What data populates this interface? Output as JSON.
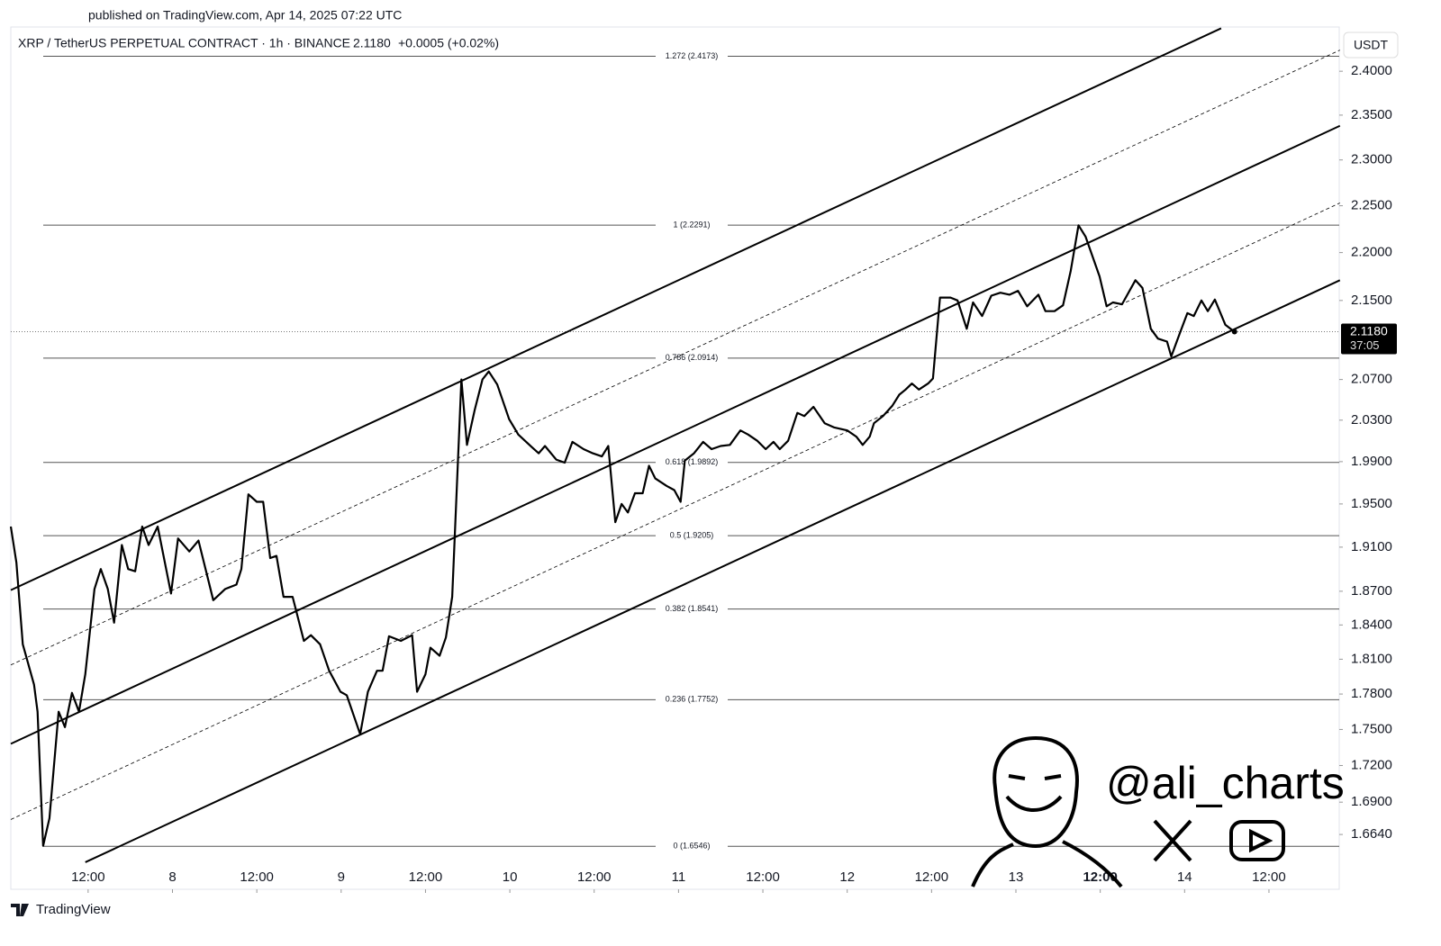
{
  "header": {
    "published": "published on TradingView.com, Apr 14, 2025 07:22 UTC",
    "symbol": "XRP / TetherUS PERPETUAL CONTRACT · 1h · BINANCE",
    "last": "2.1180",
    "change": "+0.0005 (+0.02%)",
    "currency": "USDT"
  },
  "chart_data": {
    "type": "line",
    "color": "#000000",
    "log_y": true,
    "x": [
      1.0,
      1.8,
      2.7,
      4.3,
      4.8,
      5.6,
      6.5,
      7.8,
      8.7,
      9.7,
      10.7,
      11.6,
      12.9,
      13.8,
      14.8,
      15.7,
      16.8,
      17.7,
      18.7,
      19.7,
      20.6,
      21.9,
      23.8,
      24.8,
      26.4,
      27.7,
      29.8,
      31.5,
      33.1,
      33.8,
      34.8,
      36.0,
      36.9,
      37.9,
      38.8,
      39.8,
      41.1,
      42.7,
      43.7,
      45.0,
      46.3,
      47.9,
      48.8,
      50.7,
      51.8,
      53.1,
      53.9,
      54.8,
      56.5,
      58.1,
      58.8,
      60.0,
      60.7,
      62.0,
      62.9,
      63.8,
      65.1,
      65.9,
      67.0,
      68.1,
      69.0,
      70.2,
      71.9,
      73.2,
      75.1,
      76.1,
      77.0,
      78.6,
      79.8,
      80.9,
      82.5,
      83.8,
      85.1,
      86.0,
      87.0,
      87.9,
      88.8,
      89.8,
      90.9,
      91.8,
      92.7,
      94.3,
      95.4,
      96.3,
      96.9,
      98.2,
      99.5,
      100.7,
      102.0,
      103.3,
      104.8,
      105.9,
      107.2,
      108.4,
      109.5,
      110.4,
      111.6,
      112.9,
      113.9,
      115.2,
      116.8,
      118.1,
      120.0,
      121.3,
      122.2,
      123.2,
      123.8,
      125.1,
      126.4,
      127.4,
      128.3,
      129.2,
      130.2,
      131.5,
      132.2,
      133.2,
      134.7,
      135.7,
      137.0,
      137.9,
      139.2,
      140.5,
      141.8,
      143.1,
      144.3,
      145.6,
      147.2,
      148.2,
      149.5,
      150.7,
      151.8,
      152.9,
      153.9,
      155.9,
      156.9,
      157.8,
      159.1,
      161.0,
      162.0,
      163.2,
      164.2,
      165.5,
      166.1,
      167.4,
      168.4,
      169.3,
      170.4,
      171.3,
      172.3,
      173.8,
      175.1
    ],
    "values": [
      1.929,
      1.896,
      1.823,
      1.788,
      1.765,
      1.655,
      1.677,
      1.765,
      1.752,
      1.781,
      1.765,
      1.797,
      1.872,
      1.89,
      1.872,
      1.842,
      1.912,
      1.89,
      1.888,
      1.929,
      1.912,
      1.929,
      1.868,
      1.918,
      1.906,
      1.916,
      1.862,
      1.872,
      1.876,
      1.89,
      1.959,
      1.952,
      1.952,
      1.9,
      1.902,
      1.865,
      1.865,
      1.826,
      1.831,
      1.823,
      1.8,
      1.782,
      1.779,
      1.746,
      1.782,
      1.8,
      1.8,
      1.83,
      1.826,
      1.831,
      1.782,
      1.797,
      1.82,
      1.813,
      1.829,
      1.865,
      2.07,
      2.006,
      2.04,
      2.07,
      2.078,
      2.065,
      2.031,
      2.016,
      2.004,
      1.998,
      2.005,
      1.992,
      1.989,
      2.009,
      2.002,
      1.998,
      1.995,
      2.005,
      1.933,
      1.95,
      1.942,
      1.96,
      1.96,
      1.986,
      1.974,
      1.967,
      1.963,
      1.952,
      1.991,
      1.998,
      2.009,
      2.002,
      2.005,
      2.006,
      2.02,
      2.016,
      2.01,
      2.002,
      2.009,
      2.002,
      2.01,
      2.037,
      2.034,
      2.043,
      2.027,
      2.023,
      2.02,
      2.014,
      2.006,
      2.014,
      2.027,
      2.034,
      2.044,
      2.055,
      2.06,
      2.066,
      2.06,
      2.066,
      2.071,
      2.153,
      2.153,
      2.15,
      2.121,
      2.148,
      2.134,
      2.155,
      2.158,
      2.156,
      2.16,
      2.144,
      2.156,
      2.139,
      2.139,
      2.145,
      2.181,
      2.229,
      2.217,
      2.175,
      2.144,
      2.148,
      2.146,
      2.171,
      2.163,
      2.121,
      2.111,
      2.108,
      2.093,
      2.118,
      2.137,
      2.134,
      2.15,
      2.139,
      2.151,
      2.125,
      2.118
    ],
    "xlim": [
      1,
      190
    ],
    "ylim": [
      1.6208,
      2.4515
    ],
    "xticks": [
      {
        "value": 12,
        "label": "12:00"
      },
      {
        "value": 24,
        "label": "8"
      },
      {
        "value": 36,
        "label": "12:00"
      },
      {
        "value": 48,
        "label": "9"
      },
      {
        "value": 60,
        "label": "12:00"
      },
      {
        "value": 72,
        "label": "10"
      },
      {
        "value": 84,
        "label": "12:00"
      },
      {
        "value": 96,
        "label": "11"
      },
      {
        "value": 108,
        "label": "12:00"
      },
      {
        "value": 120,
        "label": "12"
      },
      {
        "value": 132,
        "label": "12:00"
      },
      {
        "value": 144,
        "label": "13"
      },
      {
        "value": 156,
        "label": "12:00"
      },
      {
        "value": 168,
        "label": "14"
      },
      {
        "value": 180,
        "label": "12:00"
      }
    ],
    "yticks": [
      {
        "value": 2.4,
        "label": "2.4000"
      },
      {
        "value": 2.35,
        "label": "2.3500"
      },
      {
        "value": 2.3,
        "label": "2.3000"
      },
      {
        "value": 2.25,
        "label": "2.2500"
      },
      {
        "value": 2.2,
        "label": "2.2000"
      },
      {
        "value": 2.15,
        "label": "2.1500"
      },
      {
        "value": 2.07,
        "label": "2.0700"
      },
      {
        "value": 2.03,
        "label": "2.0300"
      },
      {
        "value": 1.99,
        "label": "1.9900"
      },
      {
        "value": 1.95,
        "label": "1.9500"
      },
      {
        "value": 1.91,
        "label": "1.9100"
      },
      {
        "value": 1.87,
        "label": "1.8700"
      },
      {
        "value": 1.84,
        "label": "1.8400"
      },
      {
        "value": 1.81,
        "label": "1.8100"
      },
      {
        "value": 1.78,
        "label": "1.7800"
      },
      {
        "value": 1.75,
        "label": "1.7500"
      },
      {
        "value": 1.72,
        "label": "1.7200"
      },
      {
        "value": 1.69,
        "label": "1.6900"
      },
      {
        "value": 1.664,
        "label": "1.6640"
      }
    ],
    "fib_levels": [
      {
        "value": 2.4173,
        "label": "1.272 (2.4173)"
      },
      {
        "value": 2.2291,
        "label": "1 (2.2291)"
      },
      {
        "value": 2.0914,
        "label": "0.786 (2.0914)"
      },
      {
        "value": 1.9892,
        "label": "0.618 (1.9892)"
      },
      {
        "value": 1.9205,
        "label": "0.5 (1.9205)"
      },
      {
        "value": 1.8541,
        "label": "0.382 (1.8541)"
      },
      {
        "value": 1.7752,
        "label": "0.236 (1.7752)"
      },
      {
        "value": 1.6546,
        "label": "0 (1.6546)"
      }
    ],
    "channels": [
      {
        "x": [
          1.0,
          173.2
        ],
        "values": [
          1.871,
          2.45
        ],
        "dashed": false
      },
      {
        "x": [
          1.0,
          190.1
        ],
        "values": [
          1.805,
          2.4245
        ],
        "dashed": true
      },
      {
        "x": [
          1.0,
          190.1
        ],
        "values": [
          1.738,
          2.338
        ],
        "dashed": false
      },
      {
        "x": [
          1.0,
          190.1
        ],
        "values": [
          1.676,
          2.253
        ],
        "dashed": true
      },
      {
        "x": [
          11.6,
          190.1
        ],
        "values": [
          1.642,
          2.171
        ],
        "dashed": false
      }
    ],
    "price_line": {
      "value": 2.118,
      "label": "2.1180",
      "countdown": "37:05"
    }
  },
  "watermark": {
    "handle": "@ali_charts"
  },
  "footer": {
    "brand": "TradingView"
  }
}
